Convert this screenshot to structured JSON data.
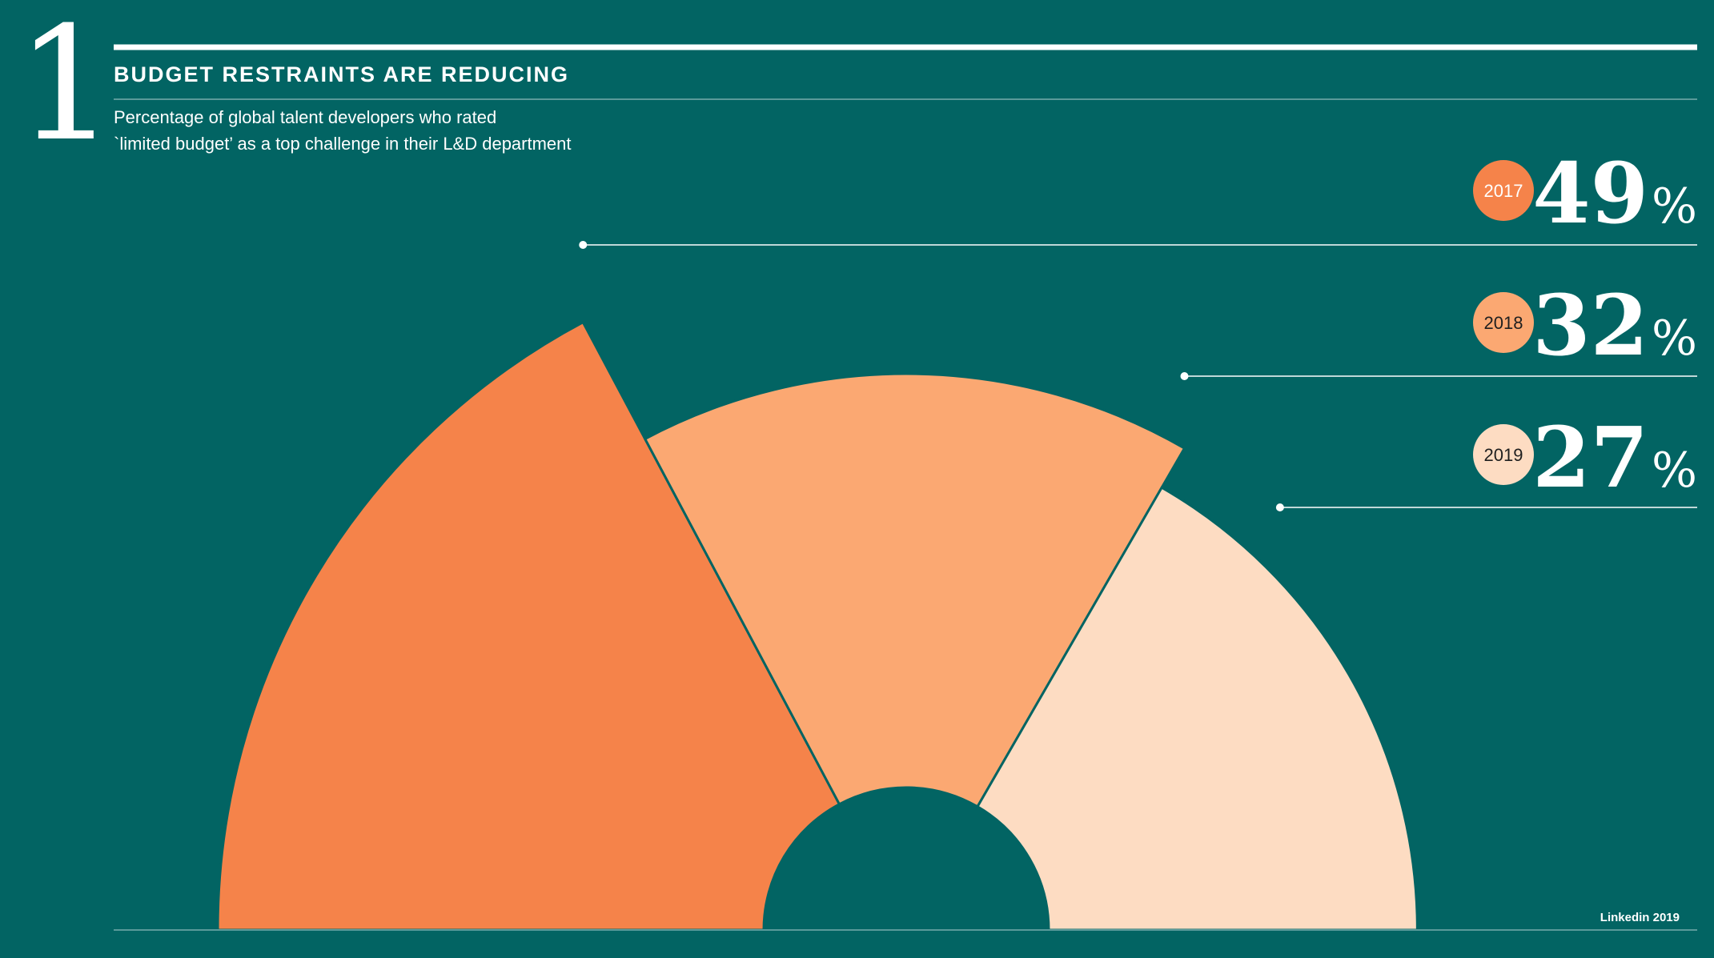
{
  "header": {
    "section_number": "1",
    "title": "BUDGET RESTRAINTS ARE REDUCING",
    "subtitle_line1": "Percentage of global talent developers who rated",
    "subtitle_line2": "`limited budget’ as a top challenge in their L&D department"
  },
  "source": "Linkedin 2019",
  "chart_data": {
    "type": "pie",
    "subtype": "half-donut",
    "title": "BUDGET RESTRAINTS ARE REDUCING",
    "categories": [
      "2017",
      "2018",
      "2019"
    ],
    "values": [
      49,
      32,
      27
    ],
    "unit": "%",
    "colors": [
      "#f5834a",
      "#fba872",
      "#fddcc2"
    ],
    "background": "#026463",
    "legend": "right",
    "labels": [
      {
        "year": "2017",
        "value": "49",
        "suffix": "%",
        "badge_color": "#f5834a",
        "badge_text_color": "#ffffff"
      },
      {
        "year": "2018",
        "value": "32",
        "suffix": "%",
        "badge_color": "#fba872",
        "badge_text_color": "#1f1f1f"
      },
      {
        "year": "2019",
        "value": "27",
        "suffix": "%",
        "badge_color": "#fddcc2",
        "badge_text_color": "#1f1f1f"
      }
    ]
  }
}
